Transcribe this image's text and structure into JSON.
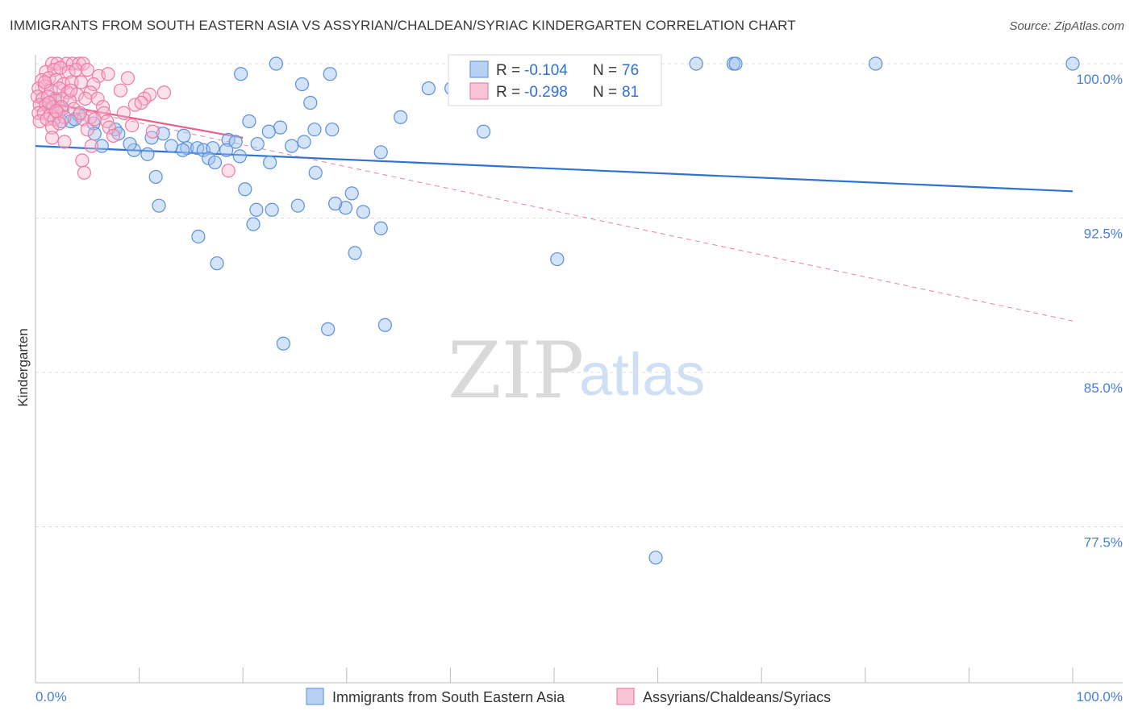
{
  "title": "IMMIGRANTS FROM SOUTH EASTERN ASIA VS ASSYRIAN/CHALDEAN/SYRIAC KINDERGARTEN CORRELATION CHART",
  "source": "Source: ZipAtlas.com",
  "watermark": {
    "zip": "ZIP",
    "atlas": "atlas"
  },
  "colors": {
    "blue": "#4a86e8",
    "blue_line": "#2f72d6",
    "pink": "#f06292",
    "pink_line": "#e8608d",
    "grid": "#dddddd",
    "tick_text": "#4a7fd0"
  },
  "legend": {
    "rows": [
      {
        "r_label": "R =",
        "r_value": "-0.104",
        "n_label": "N =",
        "n_value": "76"
      },
      {
        "r_label": "R =",
        "r_value": "-0.298",
        "n_label": "N =",
        "n_value": "81"
      }
    ]
  },
  "chart_data": {
    "type": "scatter",
    "xlabel": "",
    "ylabel": "Kindergarten",
    "xlim": [
      0,
      100
    ],
    "ylim": [
      70,
      101
    ],
    "x_tick_labels": [
      "0.0%",
      "100.0%"
    ],
    "y_ticks": [
      77.5,
      85.0,
      92.5,
      100.0
    ],
    "y_tick_labels": [
      "77.5%",
      "85.0%",
      "92.5%",
      "100.0%"
    ],
    "grid": true,
    "legend_position": "top-center",
    "series": [
      {
        "name": "Immigrants from South Eastern Asia",
        "color": "#4a86e8",
        "trend": {
          "x": [
            0,
            100
          ],
          "y": [
            96.0,
            93.8
          ]
        },
        "points": [
          [
            23.2,
            100
          ],
          [
            42.2,
            100
          ],
          [
            63.7,
            100
          ],
          [
            67.3,
            100
          ],
          [
            67.5,
            100
          ],
          [
            81,
            100
          ],
          [
            100,
            100
          ],
          [
            19.8,
            99.5
          ],
          [
            28.4,
            99.5
          ],
          [
            25.7,
            99
          ],
          [
            37.9,
            98.8
          ],
          [
            40.1,
            98.8
          ],
          [
            26.5,
            98.1
          ],
          [
            1.6,
            97.9
          ],
          [
            35.2,
            97.4
          ],
          [
            2.5,
            97.2
          ],
          [
            3.4,
            97.2
          ],
          [
            5.6,
            97.1
          ],
          [
            4.2,
            97.5
          ],
          [
            20.6,
            97.2
          ],
          [
            7.7,
            96.8
          ],
          [
            23.6,
            96.9
          ],
          [
            28.6,
            96.8
          ],
          [
            22.5,
            96.7
          ],
          [
            43.2,
            96.7
          ],
          [
            8,
            96.6
          ],
          [
            12.3,
            96.6
          ],
          [
            14.3,
            96.5
          ],
          [
            11.2,
            96.4
          ],
          [
            18.6,
            96.3
          ],
          [
            25.9,
            96.2
          ],
          [
            19.3,
            96.2
          ],
          [
            9.5,
            95.8
          ],
          [
            10.8,
            95.6
          ],
          [
            13.1,
            96.0
          ],
          [
            14.6,
            95.9
          ],
          [
            15.6,
            95.9
          ],
          [
            16.2,
            95.8
          ],
          [
            17.1,
            95.9
          ],
          [
            18.4,
            95.8
          ],
          [
            14.2,
            95.8
          ],
          [
            16.7,
            95.4
          ],
          [
            17.3,
            95.2
          ],
          [
            19.7,
            95.5
          ],
          [
            33.3,
            95.7
          ],
          [
            11.6,
            94.5
          ],
          [
            22.6,
            95.2
          ],
          [
            27,
            94.7
          ],
          [
            20.2,
            93.9
          ],
          [
            30.5,
            93.7
          ],
          [
            11.9,
            93.1
          ],
          [
            21.3,
            92.9
          ],
          [
            22.8,
            92.9
          ],
          [
            25.3,
            93.1
          ],
          [
            29.9,
            93.0
          ],
          [
            28.9,
            93.2
          ],
          [
            31.6,
            92.8
          ],
          [
            21,
            92.2
          ],
          [
            33.3,
            92.0
          ],
          [
            15.7,
            91.6
          ],
          [
            17.5,
            90.3
          ],
          [
            30.8,
            90.8
          ],
          [
            50.3,
            90.5
          ],
          [
            28.2,
            87.1
          ],
          [
            33.7,
            87.3
          ],
          [
            23.9,
            86.4
          ],
          [
            59.8,
            76.0
          ],
          [
            5.7,
            96.6
          ],
          [
            6.4,
            96.0
          ],
          [
            9.1,
            96.1
          ],
          [
            3.8,
            97.3
          ],
          [
            1.9,
            98.3
          ],
          [
            2.6,
            97.8
          ],
          [
            24.7,
            96.0
          ],
          [
            21.4,
            96.1
          ],
          [
            26.9,
            96.8
          ]
        ]
      },
      {
        "name": "Assyrians/Chaldeans/Syriacs",
        "color": "#f06292",
        "trend": {
          "x": [
            0,
            20
          ],
          "y": [
            98.2,
            96.4
          ]
        },
        "trend_extended": {
          "x": [
            0,
            100
          ],
          "y": [
            98.2,
            87.5
          ]
        },
        "points": [
          [
            1.6,
            100
          ],
          [
            2.1,
            100
          ],
          [
            3.0,
            100
          ],
          [
            3.6,
            100
          ],
          [
            4.2,
            100
          ],
          [
            4.6,
            100
          ],
          [
            1.0,
            99.6
          ],
          [
            1.8,
            99.7
          ],
          [
            2.4,
            99.8
          ],
          [
            3.2,
            99.6
          ],
          [
            3.9,
            99.7
          ],
          [
            5.0,
            99.7
          ],
          [
            6.1,
            99.4
          ],
          [
            0.6,
            99.2
          ],
          [
            1.3,
            99.3
          ],
          [
            2.0,
            99.2
          ],
          [
            2.7,
            99.0
          ],
          [
            3.5,
            99.1
          ],
          [
            4.4,
            99.1
          ],
          [
            5.6,
            99.0
          ],
          [
            8.9,
            99.3
          ],
          [
            0.3,
            98.8
          ],
          [
            0.9,
            98.9
          ],
          [
            1.5,
            98.7
          ],
          [
            2.3,
            98.8
          ],
          [
            3.1,
            98.6
          ],
          [
            4.0,
            98.5
          ],
          [
            5.3,
            98.6
          ],
          [
            11.0,
            98.5
          ],
          [
            0.2,
            98.4
          ],
          [
            0.7,
            98.3
          ],
          [
            1.2,
            98.4
          ],
          [
            1.9,
            98.2
          ],
          [
            2.6,
            98.3
          ],
          [
            3.3,
            98.2
          ],
          [
            4.8,
            98.3
          ],
          [
            6.0,
            98.3
          ],
          [
            10.5,
            98.3
          ],
          [
            0.4,
            98.0
          ],
          [
            1.0,
            98.0
          ],
          [
            1.7,
            97.9
          ],
          [
            2.5,
            97.9
          ],
          [
            3.7,
            97.8
          ],
          [
            6.5,
            97.9
          ],
          [
            9.6,
            98.0
          ],
          [
            10.2,
            98.1
          ],
          [
            0.3,
            97.6
          ],
          [
            0.8,
            97.6
          ],
          [
            1.4,
            97.5
          ],
          [
            2.2,
            97.6
          ],
          [
            5.3,
            97.4
          ],
          [
            6.6,
            97.6
          ],
          [
            8.5,
            97.6
          ],
          [
            0.4,
            97.2
          ],
          [
            1.1,
            97.3
          ],
          [
            1.8,
            97.3
          ],
          [
            2.8,
            97.4
          ],
          [
            4.6,
            97.3
          ],
          [
            5.7,
            97.3
          ],
          [
            6.9,
            97.2
          ],
          [
            1.6,
            96.9
          ],
          [
            2.3,
            97.1
          ],
          [
            5.0,
            96.8
          ],
          [
            7.1,
            96.9
          ],
          [
            9.3,
            97.0
          ],
          [
            11.3,
            96.7
          ],
          [
            1.6,
            96.4
          ],
          [
            2.8,
            96.2
          ],
          [
            5.4,
            96.0
          ],
          [
            7.5,
            96.5
          ],
          [
            4.5,
            95.3
          ],
          [
            4.7,
            94.7
          ],
          [
            18.6,
            94.8
          ],
          [
            0.9,
            99.1
          ],
          [
            1.3,
            98.1
          ],
          [
            2.0,
            97.7
          ],
          [
            3.4,
            98.7
          ],
          [
            4.3,
            97.6
          ],
          [
            7.0,
            99.5
          ],
          [
            8.2,
            98.7
          ],
          [
            12.4,
            98.6
          ]
        ]
      }
    ]
  },
  "bottom_legend": {
    "items": [
      {
        "label": "Immigrants from South Eastern Asia"
      },
      {
        "label": "Assyrians/Chaldeans/Syriacs"
      }
    ]
  }
}
